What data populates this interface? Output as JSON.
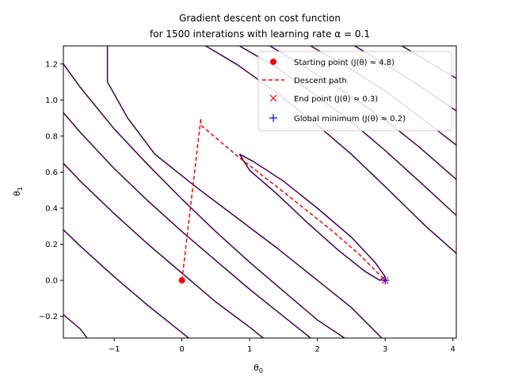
{
  "chart_data": {
    "type": "line",
    "title_lines": [
      "Gradient descent on cost function",
      "for 1500 interations with learning rate α = 0.1"
    ],
    "xlabel": "θ",
    "xlabel_sub": "0",
    "ylabel": "θ",
    "ylabel_sub": "1",
    "xlim": [
      -1.75,
      4.05
    ],
    "ylim": [
      -0.32,
      1.3
    ],
    "xticks": [
      -1,
      0,
      1,
      2,
      3,
      4
    ],
    "yticks": [
      -0.2,
      0.0,
      0.2,
      0.4,
      0.6,
      0.8,
      1.0,
      1.2
    ],
    "xtick_labels": [
      "−1",
      "0",
      "1",
      "2",
      "3",
      "4"
    ],
    "ytick_labels": [
      "−0.2",
      "0.0",
      "0.2",
      "0.4",
      "0.6",
      "0.8",
      "1.0",
      "1.2"
    ],
    "grid": false,
    "legend_position": "top-right",
    "colors": {
      "contour": "#440154",
      "path": "#ff0000",
      "global_min": "#0000ff"
    },
    "contours": [
      {
        "points": [
          [
            0.85,
            0.7
          ],
          [
            1.05,
            0.66
          ],
          [
            1.5,
            0.55
          ],
          [
            2.0,
            0.4
          ],
          [
            2.5,
            0.24
          ],
          [
            2.85,
            0.1
          ],
          [
            3.0,
            0.02
          ],
          [
            2.92,
            0.0
          ],
          [
            2.7,
            0.05
          ],
          [
            2.3,
            0.17
          ],
          [
            1.85,
            0.32
          ],
          [
            1.4,
            0.48
          ],
          [
            1.0,
            0.61
          ],
          [
            0.85,
            0.7
          ]
        ]
      },
      {
        "points": [
          [
            -1.1,
            1.3
          ],
          [
            -1.1,
            1.1
          ],
          [
            -0.8,
            0.9
          ],
          [
            -0.4,
            0.7
          ],
          [
            0.2,
            0.52
          ],
          [
            0.8,
            0.35
          ],
          [
            1.4,
            0.18
          ],
          [
            2.0,
            0.0
          ],
          [
            2.5,
            -0.15
          ],
          [
            2.95,
            -0.32
          ]
        ]
      },
      {
        "points": [
          [
            0.35,
            1.3
          ],
          [
            0.8,
            1.2
          ],
          [
            1.4,
            1.04
          ],
          [
            2.0,
            0.86
          ],
          [
            2.5,
            0.7
          ],
          [
            3.0,
            0.52
          ],
          [
            3.6,
            0.3
          ],
          [
            4.05,
            0.15
          ]
        ]
      },
      {
        "points": [
          [
            -1.75,
            1.2
          ],
          [
            -1.5,
            1.07
          ],
          [
            -1.0,
            0.84
          ],
          [
            -0.5,
            0.64
          ],
          [
            0.0,
            0.45
          ],
          [
            0.5,
            0.27
          ],
          [
            1.0,
            0.1
          ],
          [
            1.5,
            -0.06
          ],
          [
            2.0,
            -0.22
          ],
          [
            2.4,
            -0.32
          ]
        ]
      },
      {
        "points": [
          [
            0.85,
            1.3
          ],
          [
            1.4,
            1.18
          ],
          [
            2.0,
            1.02
          ],
          [
            2.5,
            0.88
          ],
          [
            3.0,
            0.72
          ],
          [
            3.5,
            0.55
          ],
          [
            4.05,
            0.36
          ]
        ]
      },
      {
        "points": [
          [
            -1.75,
            0.93
          ],
          [
            -1.5,
            0.82
          ],
          [
            -1.0,
            0.62
          ],
          [
            -0.5,
            0.44
          ],
          [
            0.0,
            0.27
          ],
          [
            0.5,
            0.11
          ],
          [
            1.0,
            -0.05
          ],
          [
            1.5,
            -0.2
          ],
          [
            1.9,
            -0.32
          ]
        ]
      },
      {
        "points": [
          [
            1.3,
            1.3
          ],
          [
            2.0,
            1.14
          ],
          [
            2.5,
            1.02
          ],
          [
            3.0,
            0.89
          ],
          [
            3.5,
            0.74
          ],
          [
            4.05,
            0.56
          ]
        ]
      },
      {
        "points": [
          [
            -1.75,
            0.65
          ],
          [
            -1.5,
            0.55
          ],
          [
            -1.0,
            0.37
          ],
          [
            -0.5,
            0.2
          ],
          [
            0.0,
            0.04
          ],
          [
            0.5,
            -0.12
          ],
          [
            1.0,
            -0.26
          ],
          [
            1.2,
            -0.32
          ]
        ]
      },
      {
        "points": [
          [
            1.9,
            1.3
          ],
          [
            2.5,
            1.17
          ],
          [
            3.0,
            1.05
          ],
          [
            3.5,
            0.91
          ],
          [
            4.05,
            0.75
          ]
        ]
      },
      {
        "points": [
          [
            -1.75,
            0.28
          ],
          [
            -1.5,
            0.19
          ],
          [
            -1.0,
            0.02
          ],
          [
            -0.5,
            -0.14
          ],
          [
            0.0,
            -0.29
          ],
          [
            0.1,
            -0.32
          ]
        ]
      },
      {
        "points": [
          [
            2.55,
            1.3
          ],
          [
            3.0,
            1.2
          ],
          [
            3.5,
            1.08
          ],
          [
            4.05,
            0.94
          ]
        ]
      },
      {
        "points": [
          [
            -1.75,
            -0.19
          ],
          [
            -1.5,
            -0.27
          ],
          [
            -1.4,
            -0.32
          ]
        ]
      },
      {
        "points": [
          [
            3.25,
            1.3
          ],
          [
            3.6,
            1.22
          ],
          [
            4.05,
            1.12
          ]
        ]
      }
    ],
    "series": [
      {
        "label": "Starting point (J(θ) ≈ 4.8)",
        "kind": "point",
        "marker": "circle",
        "color": "#ff0000",
        "points": [
          [
            0.0,
            0.0
          ]
        ]
      },
      {
        "label": "Descent path",
        "kind": "line",
        "style": "dashed",
        "color": "#ff0000",
        "points": [
          [
            0.0,
            0.0
          ],
          [
            0.28,
            0.9
          ],
          [
            0.28,
            0.86
          ],
          [
            0.85,
            0.68
          ],
          [
            1.5,
            0.49
          ],
          [
            2.2,
            0.28
          ],
          [
            2.6,
            0.15
          ],
          [
            3.0,
            0.0
          ]
        ]
      },
      {
        "label": "End point (J(θ) ≈ 0.3)",
        "kind": "point",
        "marker": "x",
        "color": "#ff0000",
        "points": [
          [
            3.0,
            0.0
          ]
        ]
      },
      {
        "label": "Global minimum (J(θ) ≈ 0.2)",
        "kind": "point",
        "marker": "plus",
        "color": "#0000ff",
        "points": [
          [
            3.0,
            0.0
          ]
        ]
      }
    ]
  }
}
